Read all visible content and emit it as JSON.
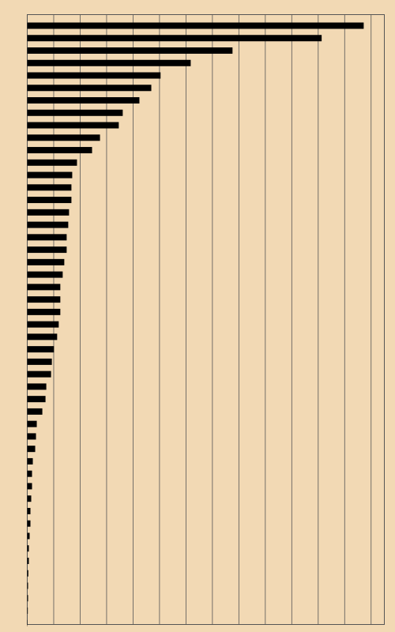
{
  "chart_data": {
    "type": "barh",
    "categories": [
      null,
      null,
      null,
      null,
      null,
      null,
      null,
      null,
      null,
      null,
      null,
      null,
      null,
      null,
      null,
      null,
      null,
      null,
      null,
      null,
      null,
      null,
      null,
      null,
      null,
      null,
      null,
      null,
      null,
      null,
      null,
      null,
      null,
      null,
      null,
      null,
      null,
      null,
      null,
      null,
      null,
      null,
      null,
      null,
      null,
      null,
      null,
      null,
      null
    ],
    "values": [
      12.72,
      11.13,
      7.76,
      6.18,
      5.04,
      4.69,
      4.24,
      3.61,
      3.46,
      2.75,
      2.45,
      1.88,
      1.7,
      1.67,
      1.67,
      1.58,
      1.55,
      1.49,
      1.49,
      1.4,
      1.34,
      1.25,
      1.25,
      1.25,
      1.19,
      1.13,
      1.01,
      0.93,
      0.9,
      0.72,
      0.69,
      0.57,
      0.36,
      0.33,
      0.3,
      0.21,
      0.18,
      0.18,
      0.15,
      0.12,
      0.12,
      0.09,
      0.06,
      0.06,
      0.04,
      0.03,
      0.03,
      0.02,
      0.01
    ],
    "color": "#000000",
    "xlim": [
      0,
      13.5
    ],
    "xticks": [
      0,
      1,
      2,
      3,
      4,
      5,
      6,
      7,
      8,
      9,
      10,
      11,
      12,
      13
    ],
    "grid": true
  }
}
